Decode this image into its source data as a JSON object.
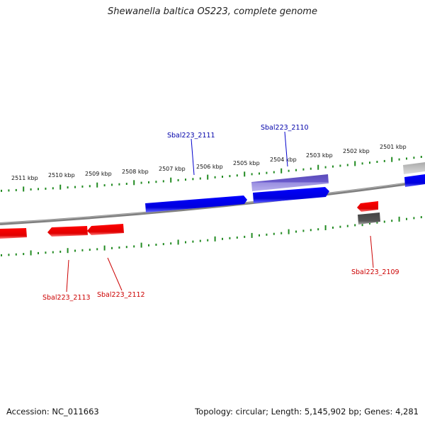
{
  "title": "Shewanella baltica OS223, complete genome",
  "footer": {
    "accession": "Accession: NC_011663",
    "summary": "Topology: circular; Length: 5,145,902 bp; Genes: 4,281"
  },
  "colors": {
    "forward_gene": "#0000ee",
    "reverse_gene": "#ee0000",
    "selected_gene": "#6a5acd",
    "pseudo_gene": "#555555",
    "backbone": "#808080",
    "tick": "#228b22"
  },
  "scale": {
    "unit": "kbp",
    "ticks": [
      {
        "label": "2511 kbp",
        "value": 2511
      },
      {
        "label": "2510 kbp",
        "value": 2510
      },
      {
        "label": "2509 kbp",
        "value": 2509
      },
      {
        "label": "2508 kbp",
        "value": 2508
      },
      {
        "label": "2507 kbp",
        "value": 2507
      },
      {
        "label": "2506 kbp",
        "value": 2506
      },
      {
        "label": "2505 kbp",
        "value": 2505
      },
      {
        "label": "2504 kbp",
        "value": 2504
      },
      {
        "label": "2503 kbp",
        "value": 2503
      },
      {
        "label": "2502 kbp",
        "value": 2502
      },
      {
        "label": "2501 kbp",
        "value": 2501
      }
    ]
  },
  "genes": [
    {
      "label": "Sbal223_2111",
      "strand": "forward"
    },
    {
      "label": "Sbal223_2110",
      "strand": "forward"
    },
    {
      "label": "Sbal223_2109",
      "strand": "reverse"
    },
    {
      "label": "Sbal223_2112",
      "strand": "reverse"
    },
    {
      "label": "Sbal223_2113",
      "strand": "reverse"
    }
  ]
}
